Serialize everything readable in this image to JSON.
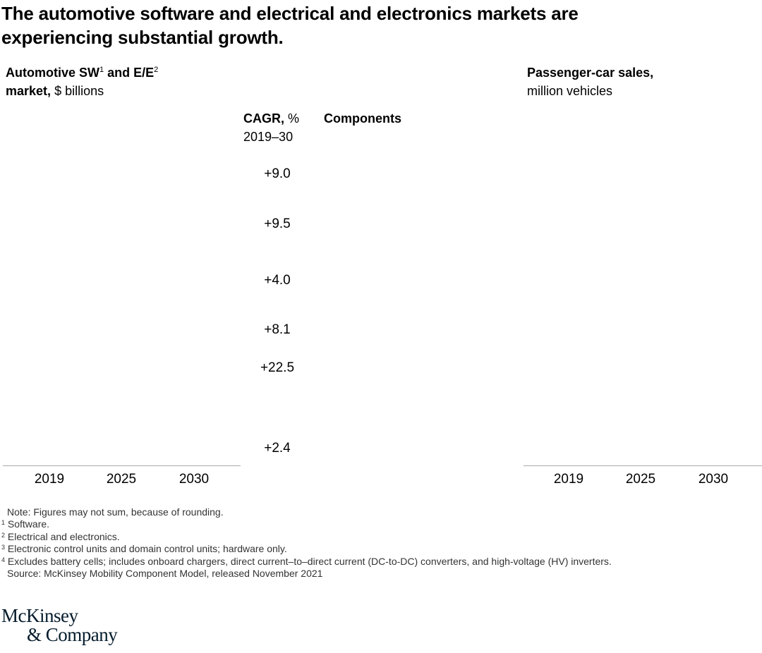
{
  "title": "The automotive software and electrical and electronics markets are experiencing substantial growth.",
  "left_panel": {
    "heading_part1": "Automotive SW",
    "heading_note1": "1",
    "heading_part2": "and E/E",
    "heading_note2": "2",
    "heading_bold2": "market,",
    "unit": "$ billions",
    "years": [
      "2019",
      "2025",
      "2030"
    ]
  },
  "cagr": {
    "heading_bold": "CAGR,",
    "heading_unit": "%",
    "period": "2019–30",
    "values": [
      "+9.0",
      "+9.5",
      "+4.0",
      "+8.1",
      "+22.5",
      "+2.4"
    ]
  },
  "components_heading": "Components",
  "right_panel": {
    "heading_bold": "Passenger-car sales,",
    "unit": "million vehicles",
    "years": [
      "2019",
      "2025",
      "2030"
    ]
  },
  "footnotes": [
    {
      "marker": "",
      "text": "Note: Figures may not sum, because of rounding."
    },
    {
      "marker": "1",
      "text": "Software."
    },
    {
      "marker": "2",
      "text": "Electrical and electronics."
    },
    {
      "marker": "3",
      "text": "Electronic control units and domain control units; hardware only."
    },
    {
      "marker": "4",
      "text": "Excludes battery cells; includes onboard chargers, direct current–to–direct current (DC-to-DC) converters, and high-voltage (HV) inverters."
    },
    {
      "marker": "",
      "text": "Source: McKinsey Mobility Component Model, released November 2021"
    }
  ],
  "logo": [
    "McKinsey",
    "& Company"
  ]
}
